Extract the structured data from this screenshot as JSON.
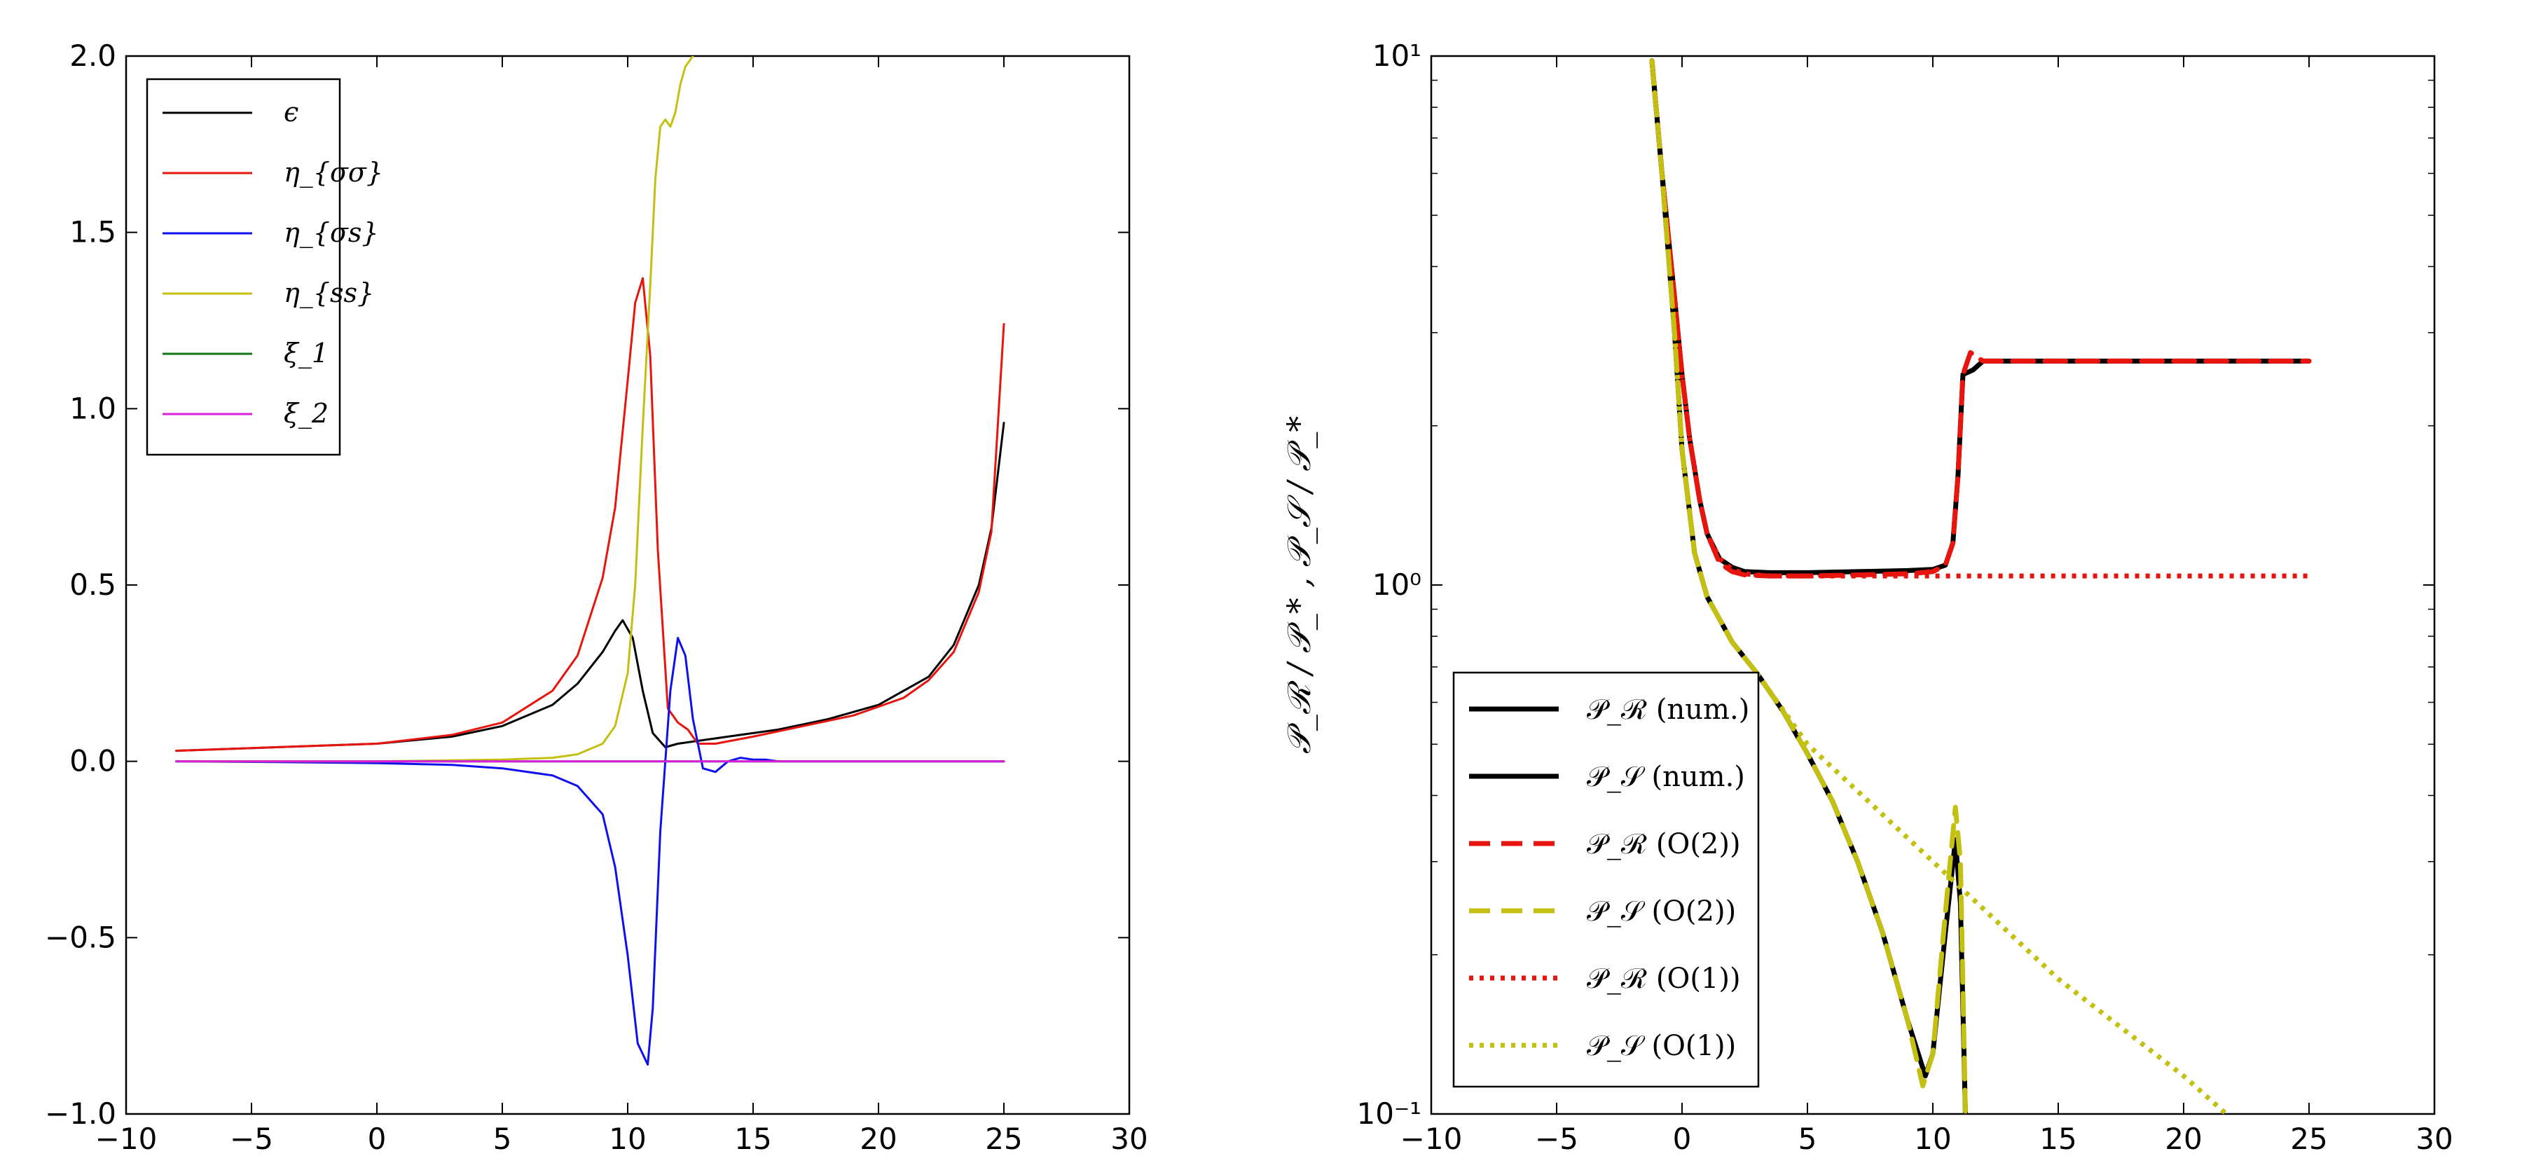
{
  "chart_data": [
    {
      "type": "line",
      "title": "",
      "xlabel": "",
      "ylabel": "",
      "xlim": [
        -10,
        30
      ],
      "ylim": [
        -1.0,
        2.0
      ],
      "xticks": [
        -10,
        -5,
        0,
        5,
        10,
        15,
        20,
        25,
        30
      ],
      "xtick_labels": [
        "−10",
        "−5",
        "0",
        "5",
        "10",
        "15",
        "20",
        "25",
        "30"
      ],
      "yticks": [
        -1.0,
        -0.5,
        0.0,
        0.5,
        1.0,
        1.5,
        2.0
      ],
      "ytick_labels": [
        "−1.0",
        "−0.5",
        "0.0",
        "0.5",
        "1.0",
        "1.5",
        "2.0"
      ],
      "legend_position": "top-left",
      "series": [
        {
          "name": "ϵ",
          "color": "#000000",
          "x": [
            -8,
            -4,
            0,
            3,
            5,
            7,
            8,
            9,
            9.5,
            9.8,
            10.2,
            10.6,
            11,
            11.5,
            12,
            14,
            16,
            18,
            20,
            22,
            23,
            24,
            24.5,
            25
          ],
          "y": [
            0.03,
            0.04,
            0.05,
            0.07,
            0.1,
            0.16,
            0.22,
            0.31,
            0.37,
            0.4,
            0.35,
            0.2,
            0.08,
            0.04,
            0.05,
            0.07,
            0.09,
            0.12,
            0.16,
            0.24,
            0.33,
            0.5,
            0.66,
            0.96
          ]
        },
        {
          "name": "η_{σσ}",
          "color": "#e8140e",
          "x": [
            -8,
            -4,
            0,
            3,
            5,
            7,
            8,
            9,
            9.5,
            10,
            10.3,
            10.6,
            10.9,
            11.2,
            11.6,
            12,
            12.4,
            12.8,
            13.5,
            15,
            17,
            19,
            21,
            22,
            23,
            24,
            24.5,
            25
          ],
          "y": [
            0.03,
            0.04,
            0.05,
            0.075,
            0.11,
            0.2,
            0.3,
            0.52,
            0.72,
            1.08,
            1.3,
            1.37,
            1.15,
            0.6,
            0.15,
            0.11,
            0.09,
            0.05,
            0.05,
            0.07,
            0.1,
            0.13,
            0.18,
            0.23,
            0.31,
            0.48,
            0.65,
            1.24
          ]
        },
        {
          "name": "η_{σs}",
          "color": "#1010ee",
          "x": [
            -8,
            -4,
            0,
            3,
            5,
            7,
            8,
            9,
            9.5,
            10,
            10.4,
            10.8,
            11,
            11.3,
            11.7,
            12,
            12.3,
            12.6,
            13,
            13.5,
            14,
            14.5,
            15,
            15.5,
            16,
            17,
            20,
            25
          ],
          "y": [
            0.0,
            -0.002,
            -0.005,
            -0.01,
            -0.02,
            -0.04,
            -0.07,
            -0.15,
            -0.3,
            -0.55,
            -0.8,
            -0.86,
            -0.7,
            -0.2,
            0.2,
            0.35,
            0.3,
            0.12,
            -0.02,
            -0.03,
            0.0,
            0.01,
            0.005,
            0.005,
            0.0,
            0.0,
            0.0,
            0.0
          ]
        },
        {
          "name": "η_{ss}",
          "color": "#c4c012",
          "x": [
            -8,
            0,
            5,
            7,
            8,
            9,
            9.5,
            10,
            10.3,
            10.6,
            10.9,
            11.1,
            11.3,
            11.5,
            11.7,
            11.9,
            12.1,
            12.3,
            12.5,
            12.6
          ],
          "y": [
            0.0,
            0.0,
            0.005,
            0.01,
            0.02,
            0.05,
            0.1,
            0.25,
            0.5,
            0.95,
            1.35,
            1.65,
            1.8,
            1.82,
            1.8,
            1.84,
            1.92,
            1.97,
            1.99,
            2.0
          ]
        },
        {
          "name": "ξ_1",
          "color": "#117711",
          "x": [
            -8,
            25
          ],
          "y": [
            0.0,
            0.0
          ]
        },
        {
          "name": "ξ_2",
          "color": "#dd1ddd",
          "x": [
            -8,
            25
          ],
          "y": [
            0.0,
            0.0
          ]
        }
      ]
    },
    {
      "type": "line",
      "title": "",
      "xlabel": "",
      "ylabel": "𝒫_ℛ / 𝒫_* ,   𝒫_𝒮 / 𝒫_*",
      "yscale": "log",
      "xlim": [
        -10,
        30
      ],
      "ylim": [
        0.1,
        10
      ],
      "xticks": [
        -10,
        -5,
        0,
        5,
        10,
        15,
        20,
        25,
        30
      ],
      "xtick_labels": [
        "−10",
        "−5",
        "0",
        "5",
        "10",
        "15",
        "20",
        "25",
        "30"
      ],
      "yticks": [
        0.1,
        1,
        10
      ],
      "ytick_labels": [
        "10⁻¹",
        "10⁰",
        "10¹"
      ],
      "legend_position": "bottom-left",
      "series": [
        {
          "name": "𝒫_ℛ (num.)",
          "color": "#000000",
          "style": "solid",
          "x": [
            -1.2,
            -0.8,
            -0.3,
            0,
            0.3,
            0.7,
            1.0,
            1.5,
            2.0,
            2.5,
            3.5,
            5,
            7,
            9,
            10,
            10.5,
            10.8,
            11.0,
            11.2,
            11.6,
            12,
            25
          ],
          "y": [
            9.8,
            6.0,
            3.5,
            2.5,
            1.9,
            1.45,
            1.25,
            1.12,
            1.08,
            1.06,
            1.055,
            1.055,
            1.06,
            1.065,
            1.07,
            1.09,
            1.2,
            1.6,
            2.5,
            2.55,
            2.65,
            2.65
          ]
        },
        {
          "name": "𝒫_𝒮 (num.)",
          "color": "#000000",
          "style": "solid",
          "x": [
            -1.2,
            -0.8,
            -0.3,
            0,
            0.5,
            1,
            2,
            3,
            4,
            5,
            6,
            7,
            8,
            9,
            9.7,
            10,
            10.5,
            10.9,
            11.1,
            11.3
          ],
          "y": [
            9.8,
            6.0,
            3.0,
            1.8,
            1.15,
            0.95,
            0.78,
            0.68,
            0.58,
            0.48,
            0.39,
            0.3,
            0.22,
            0.15,
            0.118,
            0.13,
            0.22,
            0.33,
            0.25,
            0.1
          ]
        },
        {
          "name": "𝒫_ℛ (O(2))",
          "color": "#e8140e",
          "style": "dashed",
          "x": [
            -1.2,
            -0.8,
            -0.3,
            0,
            0.3,
            0.7,
            1.0,
            1.5,
            2.0,
            2.5,
            3.5,
            5,
            7,
            9,
            10,
            10.5,
            10.8,
            11.0,
            11.2,
            11.5,
            12,
            25
          ],
          "y": [
            9.8,
            6.0,
            3.5,
            2.5,
            1.9,
            1.45,
            1.25,
            1.1,
            1.06,
            1.045,
            1.04,
            1.04,
            1.045,
            1.05,
            1.06,
            1.09,
            1.2,
            1.6,
            2.5,
            2.75,
            2.65,
            2.65
          ]
        },
        {
          "name": "𝒫_𝒮 (O(2))",
          "color": "#c4c012",
          "style": "dashed",
          "x": [
            -1.2,
            -0.8,
            -0.3,
            0,
            0.5,
            1,
            2,
            3,
            4,
            5,
            6,
            7,
            8,
            9,
            9.6,
            10,
            10.5,
            10.9,
            11.1,
            11.3
          ],
          "y": [
            9.8,
            6.0,
            3.0,
            1.8,
            1.15,
            0.95,
            0.78,
            0.68,
            0.58,
            0.48,
            0.39,
            0.3,
            0.22,
            0.15,
            0.113,
            0.13,
            0.24,
            0.38,
            0.3,
            0.1
          ]
        },
        {
          "name": "𝒫_ℛ (O(1))",
          "color": "#e8140e",
          "style": "dotted",
          "x": [
            -1.2,
            -0.8,
            -0.3,
            0,
            0.3,
            0.7,
            1.0,
            1.5,
            2.0,
            2.5,
            3.5,
            5,
            10,
            15,
            20,
            25
          ],
          "y": [
            9.8,
            6.0,
            3.5,
            2.5,
            1.9,
            1.45,
            1.25,
            1.12,
            1.07,
            1.05,
            1.04,
            1.04,
            1.04,
            1.04,
            1.04,
            1.04
          ]
        },
        {
          "name": "𝒫_𝒮 (O(1))",
          "color": "#c4c012",
          "style": "dotted",
          "x": [
            -1.2,
            -0.8,
            -0.3,
            0,
            0.5,
            1,
            2,
            3,
            5,
            10,
            15,
            20,
            21.7
          ],
          "y": [
            9.8,
            6.0,
            3.0,
            1.8,
            1.15,
            0.95,
            0.78,
            0.68,
            0.5,
            0.3,
            0.18,
            0.118,
            0.1
          ]
        }
      ]
    }
  ]
}
